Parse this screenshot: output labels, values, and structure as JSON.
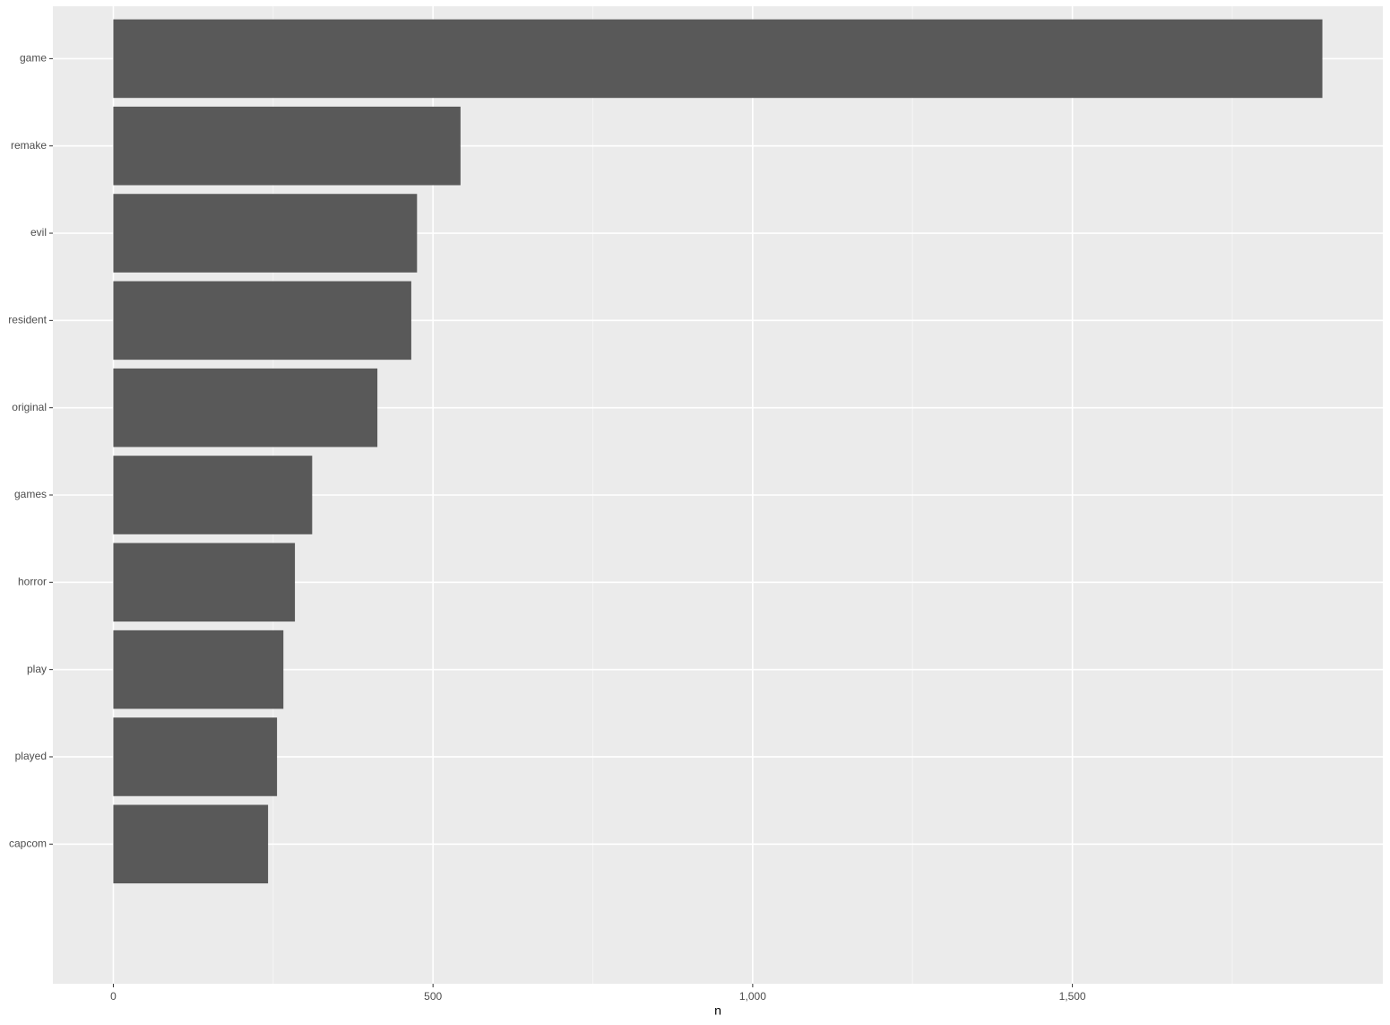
{
  "chart_data": {
    "type": "barh",
    "x_label": "n",
    "categories": [
      "game",
      "remake",
      "evil",
      "resident",
      "original",
      "games",
      "horror",
      "play",
      "played",
      "capcom"
    ],
    "values": [
      1891,
      543,
      475,
      466,
      413,
      311,
      284,
      266,
      256,
      242
    ],
    "color": "#595959",
    "xlim": [
      -94.55,
      1985.55
    ],
    "xticks": [
      0,
      500,
      {
        "value": 1000,
        "label": "1,000"
      },
      {
        "value": 1500,
        "label": "1,500"
      }
    ],
    "xminorticks": [
      250,
      750,
      1250,
      1750
    ],
    "grid": true
  }
}
